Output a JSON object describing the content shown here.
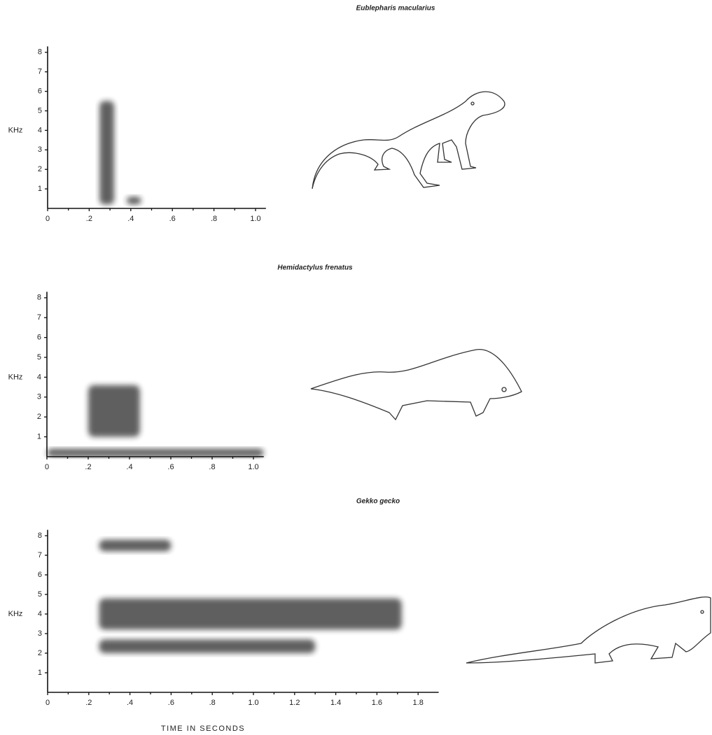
{
  "chart_data": [
    {
      "type": "spectrogram",
      "title": "Eublepharis macularius",
      "ylabel": "KHz",
      "xlim": [
        0,
        1.05
      ],
      "ylim": [
        0,
        8.3
      ],
      "xticks": [
        0,
        {
          "value": 0.2,
          "label": ".2"
        },
        {
          "value": 0.4,
          "label": ".4"
        },
        {
          "value": 0.6,
          "label": ".6"
        },
        {
          "value": 0.8,
          "label": ".8"
        },
        {
          "value": 1,
          "label": "1.0"
        }
      ],
      "yticks": [
        1,
        2,
        3,
        4,
        5,
        6,
        7,
        8
      ],
      "blobs": [
        {
          "x": [
            0.25,
            0.32
          ],
          "y": [
            0.2,
            5.5
          ]
        },
        {
          "x": [
            0.38,
            0.45
          ],
          "y": [
            0.2,
            0.6
          ]
        }
      ]
    },
    {
      "type": "spectrogram",
      "title": "Hemidactylus frenatus",
      "ylabel": "KHz",
      "xlim": [
        0,
        1.05
      ],
      "ylim": [
        0,
        8.3
      ],
      "xticks": [
        0,
        {
          "value": 0.2,
          "label": ".2"
        },
        {
          "value": 0.4,
          "label": ".4"
        },
        {
          "value": 0.6,
          "label": ".6"
        },
        {
          "value": 0.8,
          "label": ".8"
        },
        {
          "value": 1,
          "label": "1.0"
        }
      ],
      "yticks": [
        1,
        2,
        3,
        4,
        5,
        6,
        7,
        8
      ],
      "blobs": [
        {
          "x": [
            0.2,
            0.45
          ],
          "y": [
            1,
            3.6
          ]
        },
        {
          "x": [
            0,
            1.05
          ],
          "y": [
            0,
            0.4
          ]
        }
      ]
    },
    {
      "type": "spectrogram",
      "title": "Gekko gecko",
      "ylabel": "KHz",
      "xlabel": "TIME IN SECONDS",
      "xlim": [
        0,
        1.9
      ],
      "ylim": [
        0,
        8.3
      ],
      "xticks": [
        0,
        {
          "value": 0.2,
          "label": ".2"
        },
        {
          "value": 0.4,
          "label": ".4"
        },
        {
          "value": 0.6,
          "label": ".6"
        },
        {
          "value": 0.8,
          "label": ".8"
        },
        {
          "value": 1,
          "label": "1.0"
        },
        {
          "value": 1.2,
          "label": "1.2"
        },
        {
          "value": 1.4,
          "label": "1.4"
        },
        {
          "value": 1.6,
          "label": "1.6"
        },
        {
          "value": 1.8,
          "label": "1.8"
        }
      ],
      "yticks": [
        1,
        2,
        3,
        4,
        5,
        6,
        7,
        8
      ],
      "blobs": [
        {
          "x": [
            0.25,
            1.72
          ],
          "y": [
            3.2,
            4.8
          ]
        },
        {
          "x": [
            0.25,
            1.3
          ],
          "y": [
            2,
            2.7
          ]
        },
        {
          "x": [
            0.25,
            0.6
          ],
          "y": [
            7.2,
            7.8
          ]
        }
      ]
    }
  ]
}
